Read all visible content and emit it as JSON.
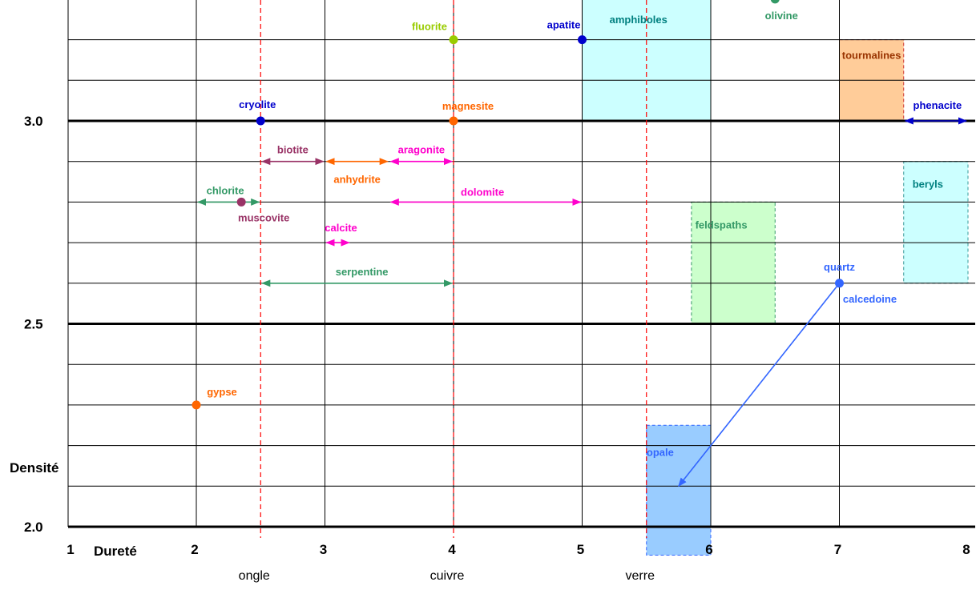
{
  "chart_data": {
    "type": "scatter",
    "title": "",
    "xlabel": "Dureté",
    "ylabel": "Densité",
    "xlim": [
      1,
      8
    ],
    "ylim": [
      1.95,
      3.3
    ],
    "x_ticks": [
      {
        "value": 1,
        "label": "1"
      },
      {
        "value": 2,
        "label": "2"
      },
      {
        "value": 3,
        "label": "3"
      },
      {
        "value": 4,
        "label": "4"
      },
      {
        "value": 5,
        "label": "5"
      },
      {
        "value": 6,
        "label": "6"
      },
      {
        "value": 7,
        "label": "7"
      },
      {
        "value": 8,
        "label": "8"
      }
    ],
    "y_ticks": [
      {
        "value": 3.0,
        "label": "3.0"
      },
      {
        "value": 2.5,
        "label": "2.5"
      },
      {
        "value": 2.0,
        "label": "2.0"
      }
    ],
    "grid": true,
    "reference_lines": [
      {
        "x": 2.5,
        "label": "ongle"
      },
      {
        "x": 4.0,
        "label": "cuivre"
      },
      {
        "x": 5.5,
        "label": "verre"
      }
    ],
    "points": [
      {
        "name": "fluorite",
        "x": 4.0,
        "y": 3.2,
        "color": "#99cc00"
      },
      {
        "name": "apatite",
        "x": 5.0,
        "y": 3.2,
        "color": "#0000cc"
      },
      {
        "name": "olivine",
        "x": 6.5,
        "y": 3.3,
        "color": "#339966"
      },
      {
        "name": "cryolite",
        "x": 2.5,
        "y": 3.0,
        "color": "#0000cc"
      },
      {
        "name": "magnesite",
        "x": 4.0,
        "y": 3.0,
        "color": "#ff6600"
      },
      {
        "name": "muscovite",
        "x": 2.35,
        "y": 2.8,
        "color": "#993366"
      },
      {
        "name": "quartz",
        "x": 7.0,
        "y": 2.6,
        "color": "#3366ff"
      },
      {
        "name": "gypse",
        "x": 2.0,
        "y": 2.3,
        "color": "#ff6600"
      }
    ],
    "ranges": [
      {
        "name": "biotite",
        "x": [
          2.5,
          3.0
        ],
        "y": 2.9,
        "color": "#993366"
      },
      {
        "name": "anhydrite",
        "x": [
          3.0,
          3.5
        ],
        "y": 2.9,
        "color": "#ff6600"
      },
      {
        "name": "aragonite",
        "x": [
          3.5,
          4.0
        ],
        "y": 2.9,
        "color": "#ff00cc"
      },
      {
        "name": "chlorite",
        "x": [
          2.0,
          2.5
        ],
        "y": 2.8,
        "color": "#339966"
      },
      {
        "name": "dolomite",
        "x": [
          3.5,
          5.0
        ],
        "y": 2.8,
        "color": "#ff00cc"
      },
      {
        "name": "calcite",
        "x": [
          3.0,
          3.2
        ],
        "y": 2.7,
        "color": "#ff00cc"
      },
      {
        "name": "serpentine",
        "x": [
          2.5,
          4.0
        ],
        "y": 2.6,
        "color": "#339966"
      },
      {
        "name": "phenacite",
        "x": [
          7.5,
          8.0
        ],
        "y": 3.0,
        "color": "#0000cc"
      }
    ],
    "regions": [
      {
        "name": "amphiboles",
        "x": [
          5.0,
          6.0
        ],
        "y": [
          3.0,
          3.3
        ],
        "fill": "#ccffff",
        "border": "#33cccc",
        "label_color": "#008080"
      },
      {
        "name": "tourmalines",
        "x": [
          7.0,
          7.5
        ],
        "y": [
          3.0,
          3.2
        ],
        "fill": "#ffcc99",
        "border": "#cc3333",
        "label_color": "#993300"
      },
      {
        "name": "beryls",
        "x": [
          7.5,
          8.0
        ],
        "y": [
          2.6,
          2.9
        ],
        "fill": "#ccffff",
        "border": "#339999",
        "label_color": "#008080"
      },
      {
        "name": "feldspaths",
        "x": [
          5.85,
          6.5
        ],
        "y": [
          2.5,
          2.8
        ],
        "fill": "#ccffcc",
        "border": "#339966",
        "label_color": "#339966"
      },
      {
        "name": "opale",
        "x": [
          5.5,
          6.0
        ],
        "y": [
          1.93,
          2.25
        ],
        "fill": "#99ccff",
        "border": "#3366ff",
        "label_color": "#3366ff"
      }
    ],
    "annotations": [
      {
        "text": "calcedoine",
        "color": "#3366ff",
        "arrow_from": [
          7.0,
          2.6
        ],
        "arrow_to": [
          5.75,
          2.1
        ]
      }
    ]
  }
}
